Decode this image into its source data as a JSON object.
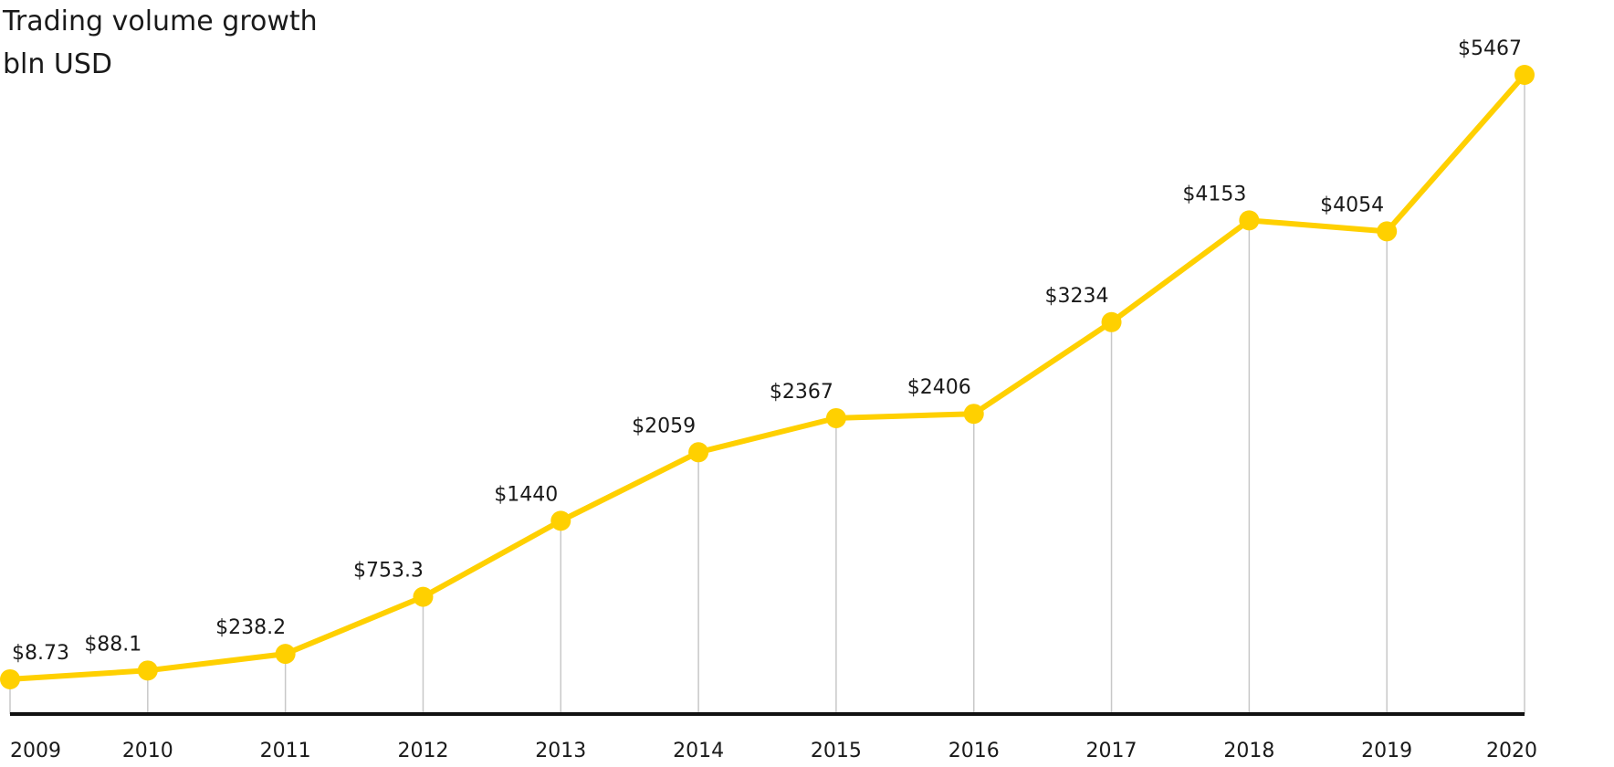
{
  "chart_data": {
    "type": "line",
    "title": "Trading volume growth",
    "subtitle": "bln USD",
    "x": [
      "2009",
      "2010",
      "2011",
      "2012",
      "2013",
      "2014",
      "2015",
      "2016",
      "2017",
      "2018",
      "2019",
      "2020"
    ],
    "series": [
      {
        "values": [
          8.73,
          88.1,
          238.2,
          753.3,
          1440,
          2059,
          2367,
          2406,
          3234,
          4153,
          4054,
          5467
        ],
        "labels": [
          "$8.73",
          "$88.1",
          "$238.2",
          "$753.3",
          "$1440",
          "$2059",
          "$2367",
          "$2406",
          "$3234",
          "$4153",
          "$4054",
          "$5467"
        ]
      }
    ],
    "ylim": [
      0,
      5467
    ],
    "grid": "vertical drop lines at each point",
    "line_color": "#FFD000",
    "axis_color": "#111111",
    "gridline_color": "#c8c8c8"
  }
}
